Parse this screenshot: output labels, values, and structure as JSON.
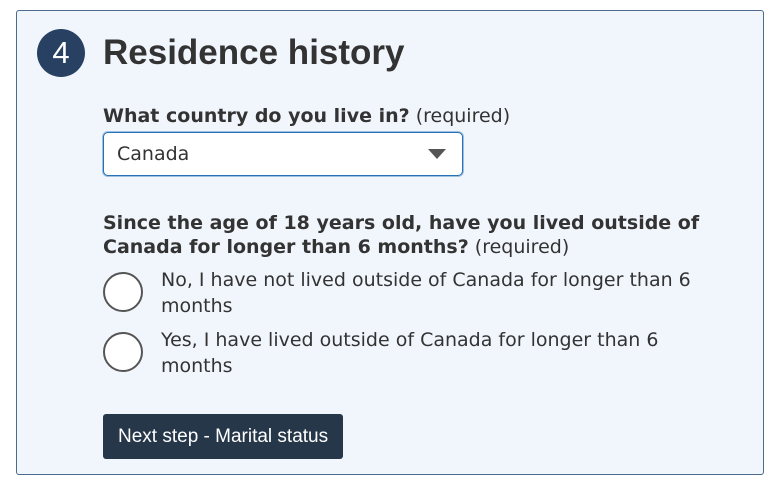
{
  "section": {
    "step_number": "4",
    "title": "Residence history"
  },
  "country_question": {
    "label": "What country do you live in?",
    "required_text": "(required)",
    "selected_value": "Canada"
  },
  "residence_question": {
    "label": "Since the age of 18 years old, have you lived outside of Canada for longer than 6 months?",
    "required_text": "(required)",
    "options": [
      {
        "label": "No, I have not lived outside of Canada for longer than 6 months",
        "selected": false
      },
      {
        "label": "Yes, I have lived outside of Canada for longer than 6 months",
        "selected": false
      }
    ]
  },
  "next_button": {
    "label": "Next step - Marital status"
  },
  "colors": {
    "panel_background": "#f1f6fd",
    "panel_border": "#4e6a8c",
    "badge_background": "#284162",
    "button_background": "#26374a",
    "focus_border": "#2572b4"
  }
}
